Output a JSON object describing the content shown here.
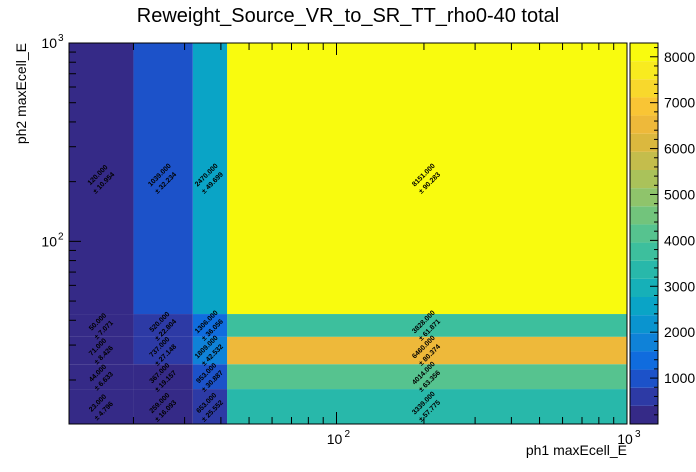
{
  "chart_data": {
    "type": "heatmap",
    "title": "Reweight_Source_VR_to_SR_TT_rho0-40 total",
    "xlabel": "ph1 maxEcell_E",
    "ylabel": "ph2 maxEcell_E",
    "x_scale": "log",
    "y_scale": "log",
    "xlim": [
      12,
      1000
    ],
    "ylim": [
      12,
      1000
    ],
    "x_edges": [
      12,
      20,
      32,
      42,
      1000
    ],
    "y_edges": [
      12,
      18,
      24,
      33,
      43,
      1000
    ],
    "x_ticks": [
      {
        "value": 100,
        "label": "10",
        "exp": "2"
      },
      {
        "value": 1000,
        "label": "10",
        "exp": "3"
      }
    ],
    "y_ticks": [
      {
        "value": 100,
        "label": "10",
        "exp": "2"
      },
      {
        "value": 1000,
        "label": "10",
        "exp": "3"
      }
    ],
    "zlim": [
      0,
      8300
    ],
    "colorbar_ticks": [
      "1000",
      "2000",
      "3000",
      "4000",
      "5000",
      "6000",
      "7000",
      "8000"
    ],
    "cells": [
      {
        "xi": 3,
        "yi": 4,
        "value": 8151,
        "label": "8151.000",
        "error": "± 90.283"
      },
      {
        "xi": 3,
        "yi": 3,
        "value": 3828,
        "label": "3828.000",
        "error": "± 61.871"
      },
      {
        "xi": 3,
        "yi": 2,
        "value": 6460,
        "label": "6460.000",
        "error": "± 80.374"
      },
      {
        "xi": 3,
        "yi": 1,
        "value": 4014,
        "label": "4014.000",
        "error": "± 63.356"
      },
      {
        "xi": 3,
        "yi": 0,
        "value": 3339,
        "label": "3339.000",
        "error": "± 57.775"
      },
      {
        "xi": 2,
        "yi": 4,
        "value": 2470,
        "label": "2470.000",
        "error": "± 49.699"
      },
      {
        "xi": 2,
        "yi": 3,
        "value": 1306,
        "label": "1306.000",
        "error": "± 36.056"
      },
      {
        "xi": 2,
        "yi": 2,
        "value": 1809,
        "label": "1809.000",
        "error": "± 42.532"
      },
      {
        "xi": 2,
        "yi": 1,
        "value": 953,
        "label": "953.000",
        "error": "± 30.887"
      },
      {
        "xi": 2,
        "yi": 0,
        "value": 653,
        "label": "653.000",
        "error": "± 25.552"
      },
      {
        "xi": 1,
        "yi": 4,
        "value": 1039,
        "label": "1039.000",
        "error": "± 32.234"
      },
      {
        "xi": 1,
        "yi": 3,
        "value": 520,
        "label": "520.000",
        "error": "± 22.804"
      },
      {
        "xi": 1,
        "yi": 2,
        "value": 737,
        "label": "737.000",
        "error": "± 27.148"
      },
      {
        "xi": 1,
        "yi": 1,
        "value": 367,
        "label": "367.000",
        "error": "± 19.157"
      },
      {
        "xi": 1,
        "yi": 0,
        "value": 259,
        "label": "259.000",
        "error": "± 16.093"
      },
      {
        "xi": 0,
        "yi": 4,
        "value": 120,
        "label": "120.000",
        "error": "± 10.954"
      },
      {
        "xi": 0,
        "yi": 3,
        "value": 50,
        "label": "50.000",
        "error": "± 7.071"
      },
      {
        "xi": 0,
        "yi": 2,
        "value": 71,
        "label": "71.000",
        "error": "± 8.426"
      },
      {
        "xi": 0,
        "yi": 1,
        "value": 44,
        "label": "44.000",
        "error": "± 6.633"
      },
      {
        "xi": 0,
        "yi": 0,
        "value": 23,
        "label": "23.000",
        "error": "± 4.796"
      }
    ]
  }
}
